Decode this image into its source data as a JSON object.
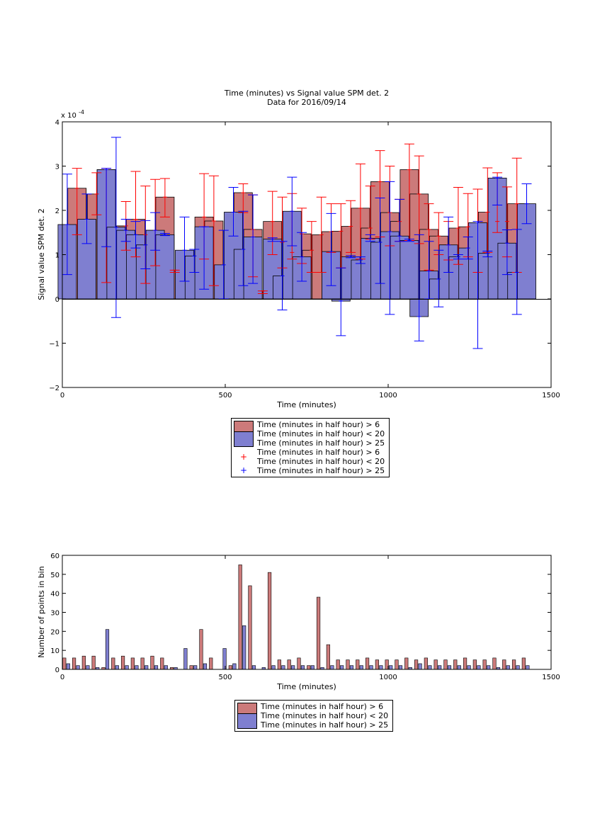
{
  "chart_data": [
    {
      "type": "bar",
      "title": "Time (minutes) vs Signal value SPM det. 2",
      "subtitle": "Data for 2016/09/14",
      "xlabel": "Time (minutes)",
      "ylabel": "Signal value SPM det. 2",
      "exponent_label": "x 10",
      "exponent_power": "-4",
      "xlim": [
        0,
        1500
      ],
      "ylim": [
        -2,
        4
      ],
      "xticks": [
        "0",
        "500",
        "1000",
        "1500"
      ],
      "yticks": [
        "−2",
        "−1",
        "0",
        "1",
        "2",
        "3",
        "4"
      ],
      "grid": false,
      "legend_position": "below",
      "legend": [
        {
          "label_1": "Time (minutes in half hour) > 6",
          "label_2": "Time (minutes in half hour) < 20",
          "kind": "bar",
          "color": "#cc7a7a"
        },
        {
          "label_1": "Time (minutes in half hour) > 25",
          "kind": "bar",
          "color": "#7f7fd0"
        },
        {
          "label_1": "Time (minutes in half hour) > 6",
          "label_2": "Time (minutes in half hour) < 20",
          "kind": "marker",
          "color": "#ff0000"
        },
        {
          "label_1": "Time (minutes in half hour) > 25",
          "kind": "marker",
          "color": "#0000ff"
        }
      ],
      "series": [
        {
          "color": "#cc7a7a",
          "error_color": "#ff0000",
          "x": [
            45,
            105,
            135,
            195,
            225,
            255,
            285,
            315,
            345,
            435,
            465,
            555,
            585,
            615,
            645,
            675,
            705,
            735,
            765,
            795,
            825,
            855,
            885,
            915,
            945,
            975,
            1005,
            1035,
            1065,
            1095,
            1125,
            1155,
            1185,
            1215,
            1245,
            1275,
            1305,
            1335,
            1365,
            1395
          ],
          "y": [
            2.5,
            2.37,
            2.92,
            1.65,
            1.8,
            1.45,
            1.55,
            2.3,
            0.65,
            1.85,
            1.76,
            2.4,
            1.57,
            0.18,
            1.75,
            1.28,
            1.05,
            1.47,
            1.1,
            1.45,
            1.52,
            1.53,
            1.64,
            2.05,
            1.6,
            2.65,
            1.95,
            1.75,
            2.92,
            2.37,
            1.57,
            1.42,
            1.22,
            1.6,
            1.63,
            1.72,
            1.96,
            1.75,
            1.75,
            2.15
          ],
          "err_low": [
            1.45,
            1.9,
            0.37,
            1.1,
            0.95,
            0.35,
            0.75,
            1.85,
            0.6,
            0.9,
            0.3,
            1.95,
            0.5,
            0.12,
            1.0,
            0.7,
            0.9,
            0.8,
            0.6,
            0.6,
            1.05,
            0.7,
            1.05,
            0.9,
            1.35,
            1.4,
            1.2,
            1.3,
            1.32,
            1.25,
            0.65,
            1.0,
            0.88,
            0.78,
            0.95,
            0.6,
            1.05,
            1.5,
            0.95,
            0.6
          ],
          "err_high": [
            2.95,
            2.85,
            2.95,
            2.2,
            2.88,
            2.55,
            2.7,
            2.72,
            0.65,
            2.83,
            2.78,
            2.6,
            2.35,
            0.18,
            2.43,
            2.3,
            2.38,
            2.05,
            1.75,
            2.3,
            2.15,
            2.15,
            2.22,
            3.05,
            2.55,
            3.35,
            3.0,
            2.25,
            3.5,
            3.23,
            2.15,
            1.95,
            1.75,
            2.52,
            2.38,
            2.48,
            2.96,
            2.85,
            2.53,
            3.18
          ]
        },
        {
          "color": "#7f7fd0",
          "error_color": "#0000ff",
          "x": [
            15,
            75,
            135,
            165,
            195,
            225,
            255,
            285,
            315,
            375,
            405,
            435,
            495,
            525,
            555,
            585,
            645,
            675,
            705,
            735,
            825,
            855,
            885,
            915,
            945,
            975,
            1005,
            1035,
            1065,
            1095,
            1125,
            1155,
            1185,
            1215,
            1245,
            1275,
            1305,
            1335,
            1365,
            1395,
            1425
          ],
          "y": [
            1.68,
            1.8,
            2.92,
            1.62,
            1.55,
            1.45,
            1.22,
            1.55,
            1.45,
            1.1,
            0.97,
            1.63,
            0.77,
            1.96,
            1.12,
            1.4,
            1.35,
            0.52,
            1.98,
            0.95,
            1.07,
            -0.05,
            0.95,
            0.88,
            1.37,
            1.28,
            1.52,
            1.42,
            1.32,
            -0.4,
            0.63,
            0.45,
            1.22,
            0.95,
            1.15,
            1.72,
            1.03,
            2.73,
            1.26,
            0.6,
            2.15
          ],
          "err_low": [
            0.55,
            1.25,
            1.18,
            -0.42,
            1.3,
            1.15,
            0.68,
            1.1,
            1.43,
            0.4,
            0.6,
            0.22,
            0.0,
            1.42,
            0.3,
            0.35,
            1.3,
            -0.25,
            1.2,
            0.4,
            0.3,
            -0.83,
            0.93,
            0.8,
            1.3,
            0.35,
            -0.35,
            1.3,
            1.3,
            -0.95,
            0.0,
            -0.18,
            0.6,
            0.9,
            0.9,
            -1.12,
            0.95,
            2.12,
            0.55,
            -0.35,
            1.7
          ],
          "err_high": [
            2.82,
            2.37,
            2.95,
            3.65,
            1.8,
            1.75,
            1.77,
            1.95,
            1.48,
            1.85,
            1.12,
            1.63,
            1.55,
            2.52,
            1.98,
            2.35,
            1.38,
            1.3,
            2.75,
            1.5,
            1.93,
            0.7,
            0.98,
            0.95,
            1.45,
            2.28,
            2.65,
            2.25,
            1.35,
            1.45,
            1.3,
            1.1,
            1.85,
            1.0,
            1.4,
            1.75,
            1.08,
            2.75,
            1.56,
            1.57,
            2.6
          ]
        }
      ]
    },
    {
      "type": "bar",
      "xlabel": "Time (minutes)",
      "ylabel": "Number of points in bin",
      "xlim": [
        0,
        1500
      ],
      "ylim": [
        0,
        60
      ],
      "xticks": [
        "0",
        "500",
        "1000",
        "1500"
      ],
      "yticks": [
        "0",
        "10",
        "20",
        "30",
        "40",
        "50",
        "60"
      ],
      "grid": false,
      "legend_position": "below",
      "legend": [
        {
          "label_1": "Time (minutes in half hour) > 6",
          "label_2": "Time (minutes in half hour) < 20",
          "kind": "bar",
          "color": "#cc7a7a"
        },
        {
          "label_1": "Time (minutes in half hour) > 25",
          "kind": "bar",
          "color": "#7f7fd0"
        }
      ],
      "series": [
        {
          "color": "#cc7a7a",
          "x": [
            6,
            36,
            66,
            96,
            126,
            156,
            186,
            216,
            246,
            276,
            306,
            336,
            366,
            396,
            426,
            456,
            486,
            516,
            546,
            576,
            606,
            636,
            666,
            696,
            726,
            756,
            786,
            816,
            846,
            876,
            906,
            936,
            966,
            996,
            1026,
            1056,
            1086,
            1116,
            1146,
            1176,
            1206,
            1236,
            1266,
            1296,
            1326,
            1356,
            1386,
            1416
          ],
          "y": [
            6,
            6,
            7,
            7,
            1,
            6,
            7,
            6,
            6,
            7,
            6,
            1,
            0,
            2,
            21,
            6,
            0,
            2,
            55,
            44,
            0,
            51,
            5,
            5,
            6,
            2,
            38,
            13,
            5,
            5,
            5,
            6,
            5,
            5,
            5,
            6,
            5,
            6,
            5,
            5,
            5,
            6,
            5,
            5,
            6,
            5,
            5,
            6
          ]
        },
        {
          "color": "#7f7fd0",
          "x": [
            18,
            48,
            78,
            108,
            138,
            168,
            198,
            228,
            258,
            288,
            318,
            348,
            378,
            408,
            438,
            468,
            498,
            528,
            558,
            588,
            618,
            648,
            678,
            708,
            738,
            768,
            798,
            828,
            858,
            888,
            918,
            948,
            978,
            1008,
            1038,
            1068,
            1098,
            1128,
            1158,
            1188,
            1218,
            1248,
            1278,
            1308,
            1338,
            1368,
            1398,
            1428
          ],
          "y": [
            3,
            2,
            2,
            1,
            21,
            2,
            2,
            2,
            2,
            2,
            2,
            1,
            11,
            2,
            3,
            0,
            11,
            3,
            23,
            2,
            1,
            2,
            2,
            2,
            2,
            2,
            1,
            2,
            2,
            2,
            2,
            2,
            2,
            2,
            2,
            1,
            3,
            2,
            2,
            2,
            2,
            2,
            2,
            2,
            1,
            2,
            2,
            2
          ]
        }
      ]
    }
  ]
}
